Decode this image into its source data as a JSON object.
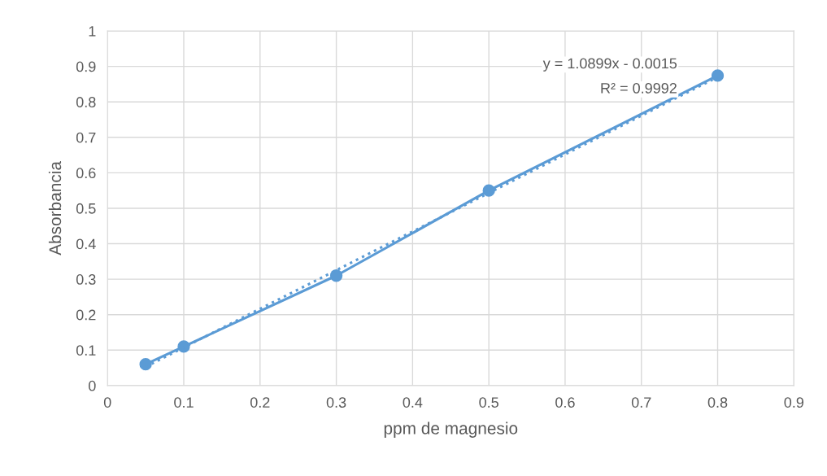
{
  "chart_data": {
    "type": "line",
    "xlabel": "ppm de magnesio",
    "ylabel": "Absorbancia",
    "series": [
      {
        "color": "#5b9bd5",
        "marker": "circle",
        "line_style": "solid",
        "x": [
          0.05,
          0.1,
          0.3,
          0.5,
          0.8
        ],
        "values": [
          0.06,
          0.11,
          0.31,
          0.55,
          0.874
        ]
      },
      {
        "type": "line",
        "color": "#5b9bd5",
        "marker": "none",
        "line_style": "dotted",
        "x": [
          0.05,
          0.8
        ],
        "values": [
          0.053,
          0.87
        ]
      }
    ],
    "annotations": [
      "y = 1.0899x - 0.0015",
      "R² = 0.9992"
    ],
    "xlim": [
      0,
      0.9
    ],
    "xticks": [
      0,
      0.1,
      0.2,
      0.3,
      0.4,
      0.5,
      0.6,
      0.7,
      0.8,
      0.9
    ],
    "ylim": [
      0,
      1
    ],
    "yticks": [
      0,
      0.1,
      0.2,
      0.3,
      0.4,
      0.5,
      0.6,
      0.7,
      0.8,
      0.9,
      1
    ],
    "grid": true,
    "legend": false
  }
}
